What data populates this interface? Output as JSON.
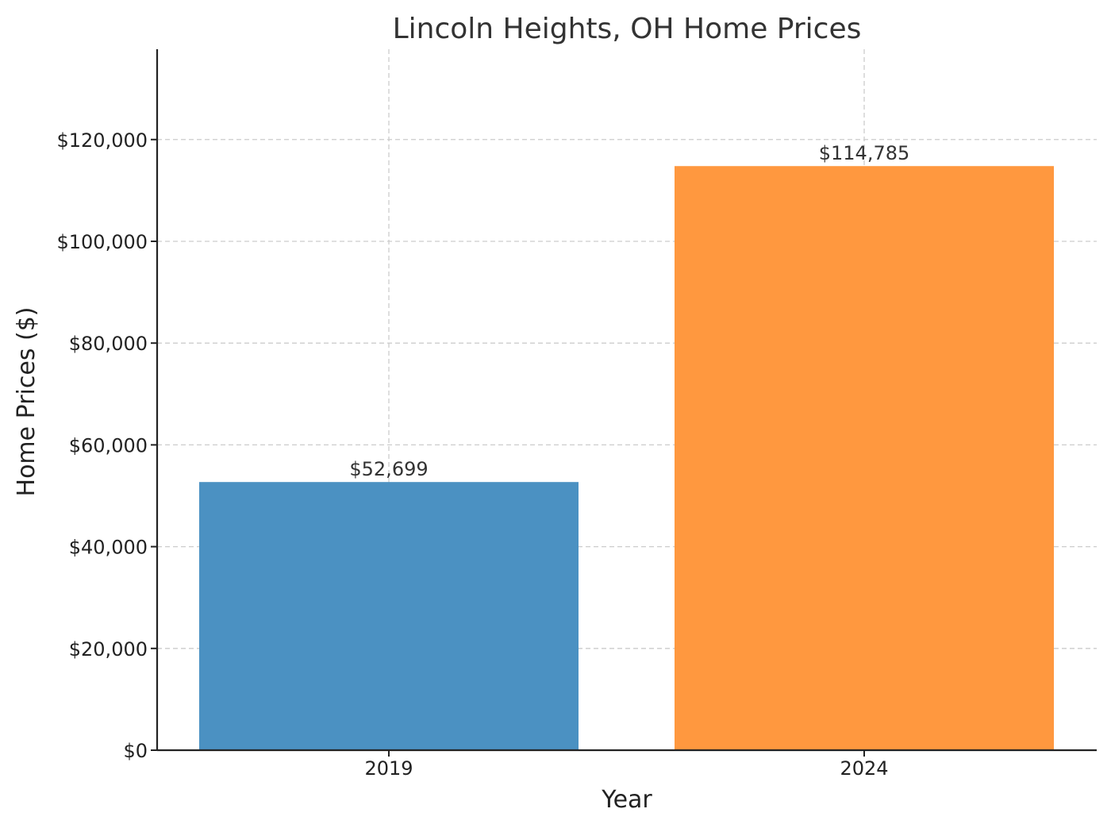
{
  "chart_data": {
    "type": "bar",
    "title": "Lincoln Heights, OH Home Prices",
    "xlabel": "Year",
    "ylabel": "Home Prices ($)",
    "categories": [
      "2019",
      "2024"
    ],
    "values": [
      52699,
      114785
    ],
    "value_labels": [
      "$52,699",
      "$114,785"
    ],
    "colors": [
      "#4b91c2",
      "#ff983f"
    ],
    "ylim": [
      0,
      137750
    ],
    "yticks": [
      0,
      20000,
      40000,
      60000,
      80000,
      100000,
      120000
    ],
    "ytick_labels": [
      "$0",
      "$20,000",
      "$40,000",
      "$60,000",
      "$80,000",
      "$100,000",
      "$120,000"
    ],
    "grid": true
  }
}
